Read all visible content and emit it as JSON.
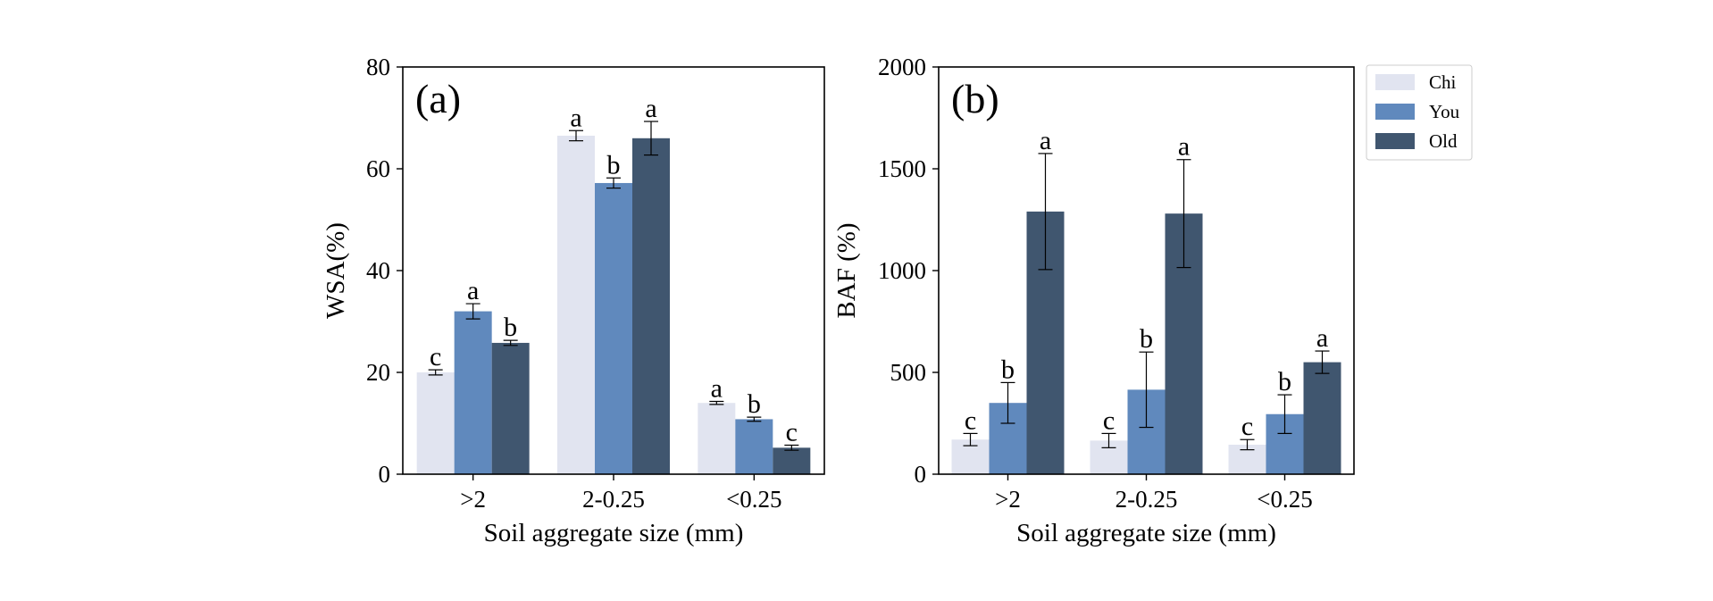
{
  "colors": {
    "Chi": "#e1e4f0",
    "You": "#6089bd",
    "Old": "#40566f"
  },
  "legend": [
    {
      "name": "Chi",
      "color": "#e1e4f0"
    },
    {
      "name": "You",
      "color": "#6089bd"
    },
    {
      "name": "Old",
      "color": "#40566f"
    }
  ],
  "chart_data": [
    {
      "type": "bar",
      "panel_label": "(a)",
      "title": "",
      "xlabel": "Soil aggregate size (mm)",
      "ylabel": "WSA(%)",
      "ylim": [
        0,
        80
      ],
      "yticks": [
        "0",
        "20",
        "40",
        "60",
        "80"
      ],
      "categories": [
        ">2",
        "2-0.25",
        "<0.25"
      ],
      "series": [
        {
          "name": "Chi",
          "values": [
            20.0,
            66.5,
            14.0
          ],
          "errors": [
            0.5,
            1.0,
            0.3
          ],
          "letters": [
            "c",
            "a",
            "a"
          ]
        },
        {
          "name": "You",
          "values": [
            32.0,
            57.2,
            10.8
          ],
          "errors": [
            1.5,
            1.0,
            0.4
          ],
          "letters": [
            "a",
            "b",
            "b"
          ]
        },
        {
          "name": "Old",
          "values": [
            25.8,
            66.0,
            5.2
          ],
          "errors": [
            0.5,
            3.3,
            0.5
          ],
          "letters": [
            "b",
            "a",
            "c"
          ]
        }
      ]
    },
    {
      "type": "bar",
      "panel_label": "(b)",
      "title": "",
      "xlabel": "Soil aggregate size (mm)",
      "ylabel": "BAF (%)",
      "ylim": [
        0,
        2000
      ],
      "yticks": [
        "0",
        "500",
        "1000",
        "1500",
        "2000"
      ],
      "categories": [
        ">2",
        "2-0.25",
        "<0.25"
      ],
      "series": [
        {
          "name": "Chi",
          "values": [
            170,
            165,
            145
          ],
          "errors": [
            30,
            35,
            25
          ],
          "letters": [
            "c",
            "c",
            "c"
          ]
        },
        {
          "name": "You",
          "values": [
            350,
            415,
            295
          ],
          "errors": [
            100,
            185,
            95
          ],
          "letters": [
            "b",
            "b",
            "b"
          ]
        },
        {
          "name": "Old",
          "values": [
            1290,
            1280,
            550
          ],
          "errors": [
            285,
            265,
            55
          ],
          "letters": [
            "a",
            "a",
            "a"
          ]
        }
      ]
    }
  ]
}
